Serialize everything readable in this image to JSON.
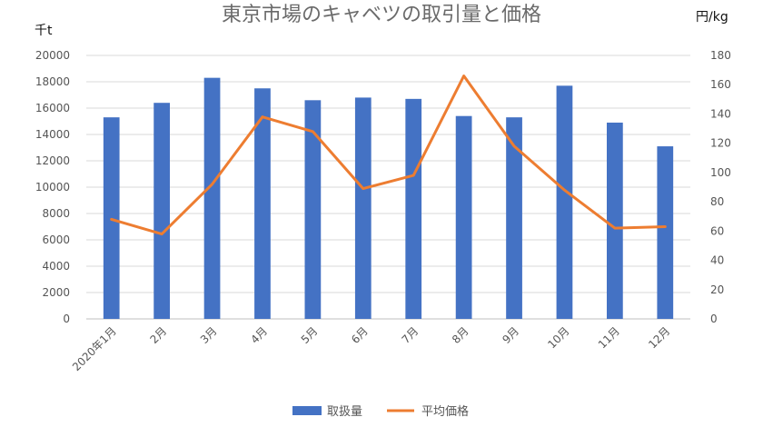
{
  "chart_data": {
    "type": "bar",
    "title": "東京市場のキャベツの取引量と価格",
    "left_unit": "千t",
    "right_unit": "円/kg",
    "categories": [
      "2020年1月",
      "2月",
      "3月",
      "4月",
      "5月",
      "6月",
      "7月",
      "8月",
      "9月",
      "10月",
      "11月",
      "12月"
    ],
    "left_axis": {
      "min": 0,
      "max": 20000,
      "ticks": [
        0,
        2000,
        4000,
        6000,
        8000,
        10000,
        12000,
        14000,
        16000,
        18000,
        20000
      ]
    },
    "right_axis": {
      "min": 0,
      "max": 180,
      "ticks": [
        0,
        20,
        40,
        60,
        80,
        100,
        120,
        140,
        160,
        180
      ]
    },
    "series": [
      {
        "name": "取扱量",
        "type": "bar",
        "axis": "left",
        "color": "#4472C4",
        "values": [
          15300,
          16400,
          18300,
          17500,
          16600,
          16800,
          16700,
          15400,
          15300,
          17700,
          14900,
          13100
        ]
      },
      {
        "name": "平均価格",
        "type": "line",
        "axis": "right",
        "color": "#ED7D31",
        "values": [
          68,
          58,
          92,
          138,
          128,
          89,
          98,
          166,
          118,
          88,
          62,
          63
        ]
      }
    ],
    "legend_position": "bottom",
    "grid": true
  }
}
